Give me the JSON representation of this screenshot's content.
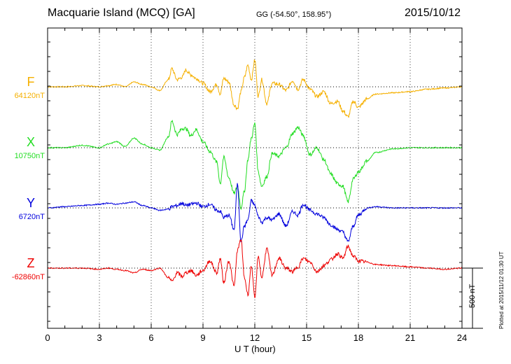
{
  "header": {
    "station": "Macquarie Island (MCQ)  [GA]",
    "coords": "GG (-54.50°, 158.95°)",
    "date": "2015/10/12"
  },
  "scale_bar": {
    "label": "500 nT",
    "value": 500
  },
  "plotted_note": "Plotted at 2015/11/12 01:30 UT",
  "chart_data": {
    "type": "line",
    "xlabel": "U T (hour)",
    "xlim": [
      0,
      24
    ],
    "xticks": [
      "0",
      "3",
      "6",
      "9",
      "12",
      "15",
      "18",
      "21",
      "24"
    ],
    "grid": true,
    "series": [
      {
        "name": "F",
        "baseline_label": "64120nT",
        "color": "#f5b000",
        "x": [
          0,
          1,
          2,
          3,
          3.5,
          4,
          4.5,
          5,
          5.5,
          6,
          6.5,
          7,
          7.2,
          7.5,
          7.8,
          8,
          8.3,
          8.6,
          9,
          9.4,
          9.8,
          10,
          10.2,
          10.5,
          10.8,
          11,
          11.2,
          11.4,
          11.6,
          11.8,
          12,
          12.2,
          12.4,
          12.7,
          13,
          13.4,
          13.8,
          14.2,
          14.5,
          14.8,
          15.2,
          15.6,
          16,
          16.4,
          16.8,
          17.1,
          17.4,
          17.7,
          18,
          18.5,
          19,
          20,
          21,
          22,
          23,
          24
        ],
        "values": [
          0,
          0,
          10,
          0,
          10,
          20,
          0,
          40,
          20,
          0,
          -30,
          60,
          150,
          60,
          80,
          140,
          100,
          70,
          30,
          -40,
          20,
          -60,
          70,
          40,
          -150,
          -180,
          -40,
          80,
          180,
          60,
          220,
          -80,
          60,
          -140,
          30,
          20,
          -30,
          50,
          -20,
          60,
          -20,
          -80,
          -40,
          -140,
          -120,
          -200,
          -250,
          -120,
          -170,
          -100,
          -60,
          -50,
          -40,
          -20,
          -10,
          0
        ]
      },
      {
        "name": "X",
        "baseline_label": "10750nT",
        "color": "#22dd22",
        "x": [
          0,
          1,
          2,
          3,
          3.5,
          4,
          4.5,
          5,
          5.5,
          6,
          6.5,
          7,
          7.2,
          7.5,
          7.8,
          8,
          8.3,
          8.6,
          9,
          9.4,
          9.8,
          10,
          10.2,
          10.5,
          10.8,
          11,
          11.2,
          11.4,
          11.6,
          11.8,
          12,
          12.2,
          12.4,
          12.7,
          13,
          13.4,
          13.8,
          14.2,
          14.5,
          14.8,
          15.2,
          15.6,
          16,
          16.4,
          16.8,
          17.1,
          17.4,
          17.7,
          18,
          18.5,
          19,
          20,
          21,
          22,
          23,
          24
        ],
        "values": [
          0,
          0,
          20,
          0,
          30,
          50,
          10,
          80,
          30,
          0,
          -20,
          90,
          220,
          110,
          160,
          160,
          100,
          150,
          50,
          -30,
          -120,
          -300,
          -80,
          -250,
          -380,
          -320,
          -500,
          -360,
          -100,
          80,
          200,
          -200,
          -320,
          -240,
          -50,
          -70,
          0,
          120,
          170,
          100,
          -60,
          0,
          -100,
          -220,
          -300,
          -320,
          -450,
          -260,
          -200,
          -110,
          -40,
          -10,
          0,
          0,
          0,
          0
        ]
      },
      {
        "name": "Y",
        "baseline_label": "6720nT",
        "color": "#0000dd",
        "x": [
          0,
          1,
          2,
          3,
          3.5,
          4,
          4.5,
          5,
          5.5,
          6,
          6.5,
          7,
          7.2,
          7.5,
          7.8,
          8,
          8.3,
          8.6,
          9,
          9.4,
          9.8,
          10,
          10.2,
          10.5,
          10.8,
          11,
          11.2,
          11.4,
          11.6,
          11.8,
          12,
          12.2,
          12.4,
          12.7,
          13,
          13.4,
          13.8,
          14.2,
          14.5,
          14.8,
          15.2,
          15.6,
          16,
          16.4,
          16.8,
          17.1,
          17.4,
          17.7,
          18,
          18.5,
          19,
          20,
          21,
          22,
          23,
          24
        ],
        "values": [
          0,
          10,
          20,
          30,
          40,
          30,
          40,
          50,
          20,
          0,
          -20,
          -10,
          10,
          20,
          40,
          20,
          30,
          40,
          10,
          30,
          -20,
          -30,
          -80,
          -60,
          -180,
          200,
          -280,
          -150,
          -100,
          60,
          20,
          -70,
          -120,
          -80,
          -100,
          -50,
          -150,
          -30,
          -60,
          30,
          -20,
          -50,
          -80,
          -140,
          -180,
          -200,
          -280,
          -150,
          -60,
          0,
          10,
          0,
          0,
          0,
          0,
          0
        ]
      },
      {
        "name": "Z",
        "baseline_label": "-62860nT",
        "color": "#ee0000",
        "x": [
          0,
          1,
          2,
          3,
          3.5,
          4,
          4.5,
          5,
          5.5,
          6,
          6.5,
          7,
          7.2,
          7.5,
          7.8,
          8,
          8.3,
          8.6,
          9,
          9.4,
          9.8,
          10,
          10.2,
          10.5,
          10.8,
          11,
          11.2,
          11.4,
          11.6,
          11.8,
          12,
          12.2,
          12.4,
          12.7,
          13,
          13.4,
          13.8,
          14.2,
          14.5,
          14.8,
          15.2,
          15.6,
          16,
          16.4,
          16.8,
          17.1,
          17.4,
          17.7,
          18,
          18.5,
          19,
          20,
          21,
          22,
          23,
          24
        ],
        "values": [
          0,
          0,
          0,
          -10,
          0,
          -10,
          -20,
          -40,
          -10,
          -20,
          0,
          -80,
          -110,
          -40,
          -70,
          -40,
          -20,
          -60,
          -20,
          60,
          -40,
          80,
          -120,
          60,
          -150,
          150,
          240,
          -80,
          -220,
          20,
          -250,
          100,
          -80,
          160,
          -60,
          80,
          0,
          -30,
          10,
          80,
          50,
          -30,
          20,
          70,
          120,
          80,
          180,
          100,
          60,
          50,
          30,
          20,
          10,
          0,
          -10,
          0
        ]
      }
    ]
  }
}
